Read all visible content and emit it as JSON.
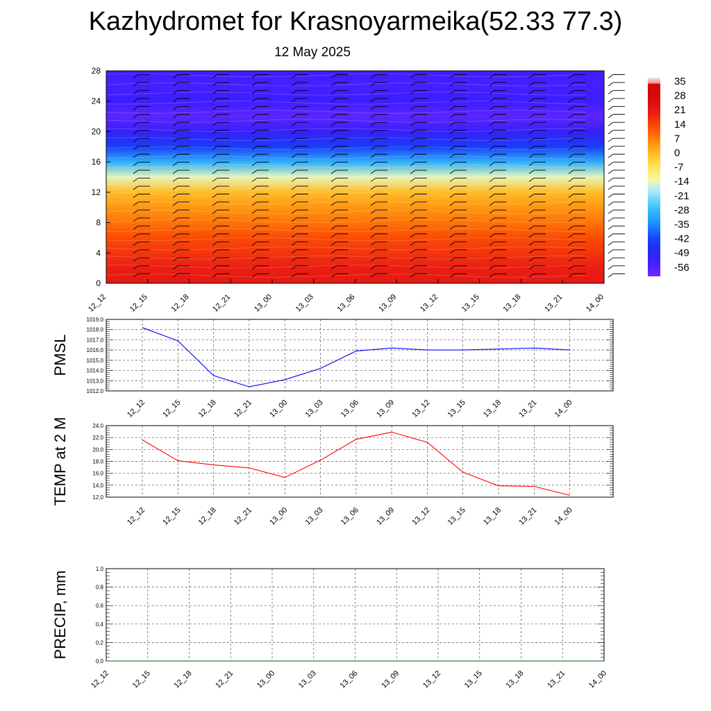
{
  "title": "Kazhydromet for Krasnoyarmeika(52.33 77.3)",
  "subtitle": "12 May 2025",
  "time_labels": [
    "12_12",
    "12_15",
    "12_18",
    "12_21",
    "13_00",
    "13_03",
    "13_06",
    "13_09",
    "13_12",
    "13_15",
    "13_18",
    "13_21",
    "14_00"
  ],
  "chart_data": [
    {
      "type": "heatmap",
      "ylim": [
        0,
        28
      ],
      "y_ticks": [
        0,
        4,
        8,
        12,
        16,
        20,
        24,
        28
      ],
      "levels": [
        0,
        2,
        4,
        6,
        8,
        10,
        12,
        14,
        16,
        18,
        20,
        22,
        24,
        26,
        28
      ],
      "temperature_profile": [
        22,
        20,
        17,
        14,
        9,
        5,
        0,
        -14,
        -30,
        -44,
        -52,
        -58,
        -54,
        -55,
        -54
      ],
      "colorbar": {
        "labels": [
          "35",
          "28",
          "21",
          "14",
          "7",
          "0",
          "-7",
          "-14",
          "-21",
          "-28",
          "-35",
          "-42",
          "-49",
          "-56"
        ],
        "colors": [
          "#e6e6e6",
          "#ff7d7d",
          "#e81a1a",
          "#d21010",
          "#ff5a00",
          "#ff8c00",
          "#ffd23c",
          "#fffa8c",
          "#b4f0ff",
          "#2ab0f0",
          "#1a50ff",
          "#2828f0",
          "#4a28ff",
          "#8a3cf0"
        ]
      },
      "wind_barbs": true
    },
    {
      "type": "line",
      "ylabel": "PMSL",
      "ylim": [
        1012.0,
        1019.0
      ],
      "y_ticks": [
        "1012.0",
        "1013.0",
        "1014.0",
        "1015.0",
        "1016.0",
        "1017.0",
        "1018.0",
        "1019.0"
      ],
      "color": "#0000ff",
      "values": [
        1018.2,
        1016.9,
        1013.5,
        1012.4,
        1013.1,
        1014.2,
        1015.9,
        1016.2,
        1016.0,
        1016.0,
        1016.1,
        1016.2,
        1016.0
      ]
    },
    {
      "type": "line",
      "ylabel": "TEMP at 2 M",
      "ylim": [
        12.0,
        24.0
      ],
      "y_ticks": [
        "12.0",
        "14.0",
        "16.0",
        "18.0",
        "20.0",
        "22.0",
        "24.0"
      ],
      "color": "#ff0000",
      "values": [
        21.6,
        18.1,
        17.4,
        16.9,
        15.3,
        18.2,
        21.7,
        22.9,
        21.2,
        16.2,
        13.9,
        13.8,
        12.3
      ]
    },
    {
      "type": "line",
      "ylabel": "PRECIP, mm",
      "ylim": [
        0.0,
        1.0
      ],
      "y_ticks": [
        "0.0",
        "0.2",
        "0.4",
        "0.6",
        "0.8",
        "1.0"
      ],
      "color": "#006400",
      "values": [
        0,
        0,
        0,
        0,
        0,
        0,
        0,
        0,
        0,
        0,
        0,
        0,
        0
      ]
    }
  ]
}
